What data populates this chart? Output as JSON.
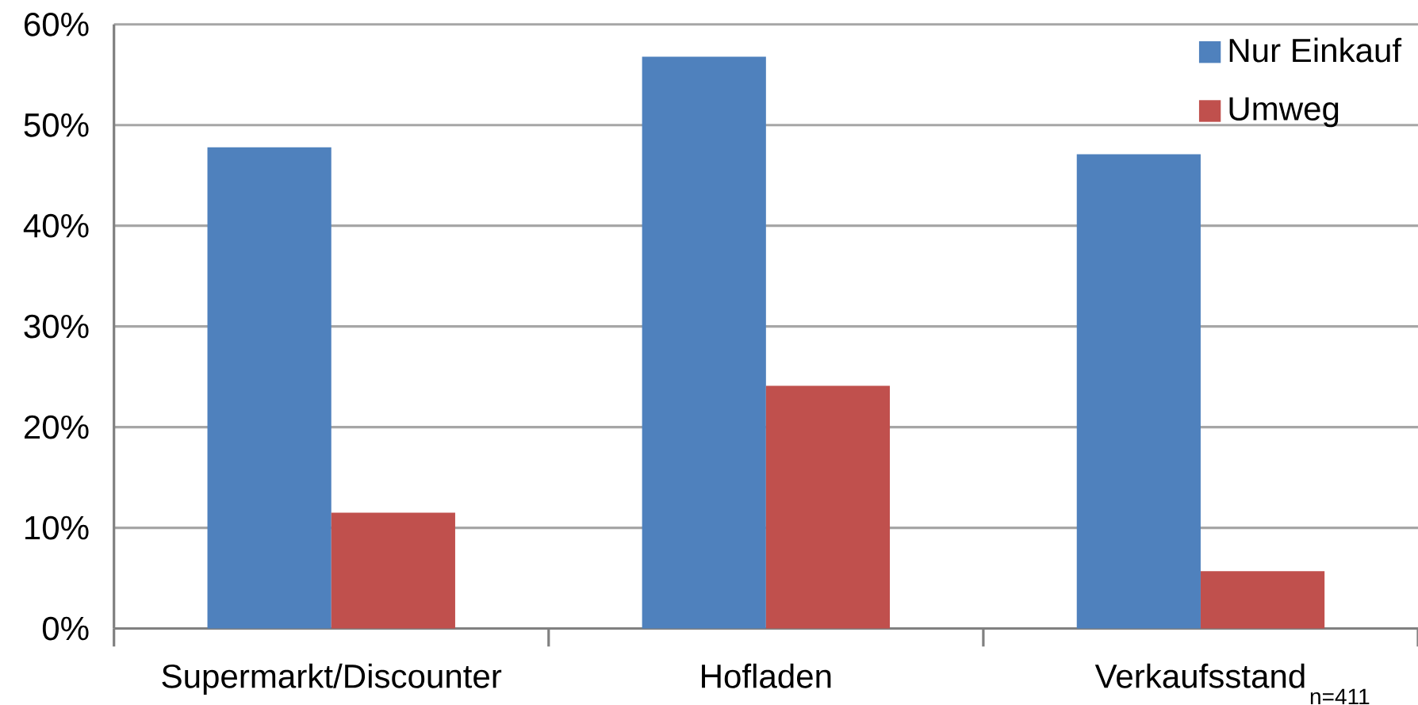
{
  "chart_data": {
    "type": "bar",
    "categories": [
      "Supermarkt/Discounter",
      "Hofladen",
      "Verkaufsstand"
    ],
    "series": [
      {
        "name": "Nur Einkauf",
        "color": "#4f81bd",
        "values": [
          47.8,
          56.8,
          47.1
        ]
      },
      {
        "name": "Umweg",
        "color": "#c0504d",
        "values": [
          11.5,
          24.1,
          5.7
        ]
      }
    ],
    "ylim": [
      0,
      60
    ],
    "yticks": [
      {
        "value": 0,
        "label": "0%"
      },
      {
        "value": 10,
        "label": "10%"
      },
      {
        "value": 20,
        "label": "20%"
      },
      {
        "value": 30,
        "label": "30%"
      },
      {
        "value": 40,
        "label": "40%"
      },
      {
        "value": 50,
        "label": "50%"
      },
      {
        "value": 60,
        "label": "60%"
      }
    ],
    "grid": "y",
    "legend": "top right",
    "annotations": [
      "n=411"
    ]
  }
}
